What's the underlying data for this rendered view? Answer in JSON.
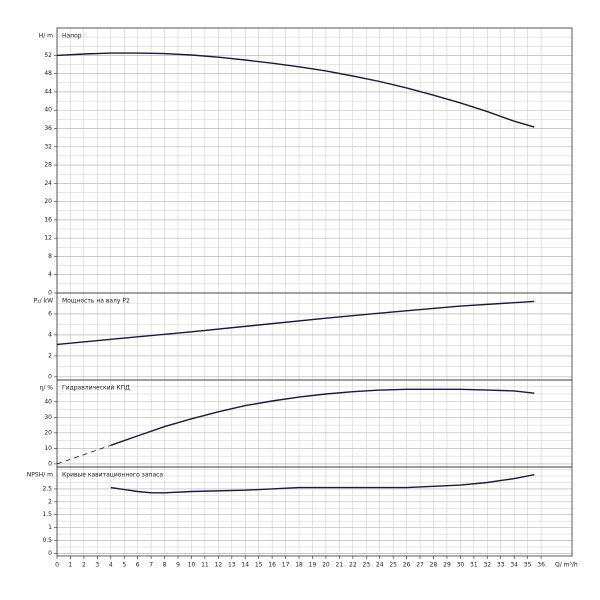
{
  "chart_data": [
    {
      "type": "line",
      "title": "Напор",
      "ylabel": "H/ m",
      "ylim": [
        0,
        58
      ],
      "yticks": [
        0,
        4,
        8,
        12,
        16,
        20,
        24,
        28,
        32,
        36,
        40,
        44,
        48,
        52
      ],
      "yminor": 2,
      "grid": true,
      "series": [
        {
          "color": "#1a1a3a",
          "dashed": false,
          "x": [
            0,
            2,
            4,
            6,
            8,
            10,
            12,
            14,
            16,
            18,
            20,
            22,
            24,
            26,
            28,
            30,
            32,
            34,
            35.5
          ],
          "values": [
            52.0,
            52.3,
            52.5,
            52.5,
            52.4,
            52.1,
            51.6,
            51.0,
            50.3,
            49.5,
            48.6,
            47.5,
            46.3,
            44.9,
            43.3,
            41.6,
            39.7,
            37.6,
            36.3
          ]
        }
      ]
    },
    {
      "type": "line",
      "title": "Мощность на валу P2",
      "ylabel": "P₂/ kW",
      "ylim": [
        -0.3,
        8
      ],
      "yticks": [
        0,
        2,
        4,
        6
      ],
      "yminor": 1,
      "grid": true,
      "series": [
        {
          "color": "#1a1a3a",
          "dashed": false,
          "x": [
            0,
            5,
            10,
            15,
            20,
            25,
            30,
            35.5
          ],
          "values": [
            3.1,
            3.7,
            4.3,
            4.95,
            5.6,
            6.2,
            6.75,
            7.2
          ]
        }
      ]
    },
    {
      "type": "line",
      "title": "Гидравлический КПД",
      "ylabel": "η/ %",
      "ylim": [
        -2,
        54
      ],
      "yticks": [
        0,
        10,
        20,
        30,
        40
      ],
      "yminor": 5,
      "grid": true,
      "series": [
        {
          "color": "#1a1a3a",
          "dashed": true,
          "x": [
            0,
            4
          ],
          "values": [
            0,
            12
          ]
        },
        {
          "color": "#1a1a3a",
          "dashed": false,
          "x": [
            4,
            6,
            8,
            10,
            12,
            14,
            16,
            18,
            20,
            22,
            24,
            26,
            28,
            30,
            32,
            34,
            35.5
          ],
          "values": [
            12,
            18,
            24,
            29,
            33.5,
            37.5,
            40.5,
            43,
            45,
            46.5,
            47.5,
            48,
            48,
            48,
            47.5,
            47,
            45.5
          ]
        }
      ]
    },
    {
      "type": "line",
      "title": "Кривые кавитационного запаса",
      "ylabel": "NPSH/ m",
      "ylim": [
        -0.1,
        3.35
      ],
      "yticks": [
        0,
        0.5,
        1,
        1.5,
        2,
        2.5
      ],
      "yminor": 0.25,
      "grid": true,
      "xlabel": "Q/ m³/h",
      "xlim": [
        0,
        38.3
      ],
      "xticks": [
        0,
        1,
        2,
        3,
        4,
        5,
        6,
        7,
        8,
        9,
        10,
        11,
        12,
        13,
        14,
        15,
        16,
        17,
        18,
        19,
        20,
        21,
        22,
        23,
        24,
        25,
        26,
        27,
        28,
        29,
        30,
        31,
        32,
        33,
        34,
        35,
        36
      ],
      "series": [
        {
          "color": "#1a1a3a",
          "dashed": false,
          "x": [
            4,
            6,
            7,
            8,
            10,
            14,
            18,
            22,
            26,
            28,
            30,
            32,
            34,
            35.5
          ],
          "values": [
            2.55,
            2.4,
            2.35,
            2.35,
            2.4,
            2.45,
            2.55,
            2.55,
            2.55,
            2.6,
            2.65,
            2.75,
            2.9,
            3.05
          ]
        }
      ]
    }
  ]
}
